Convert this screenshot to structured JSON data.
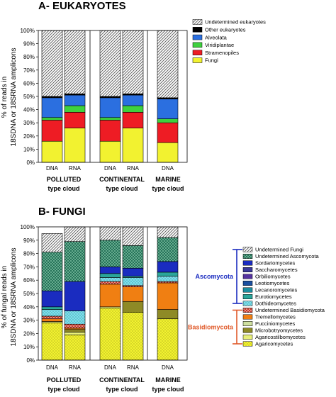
{
  "chart_data": [
    {
      "type": "bar",
      "stacked": true,
      "title": "A- EUKARYOTES",
      "ylabel_lines": [
        "% of reads in",
        "18SDNA or 18SRNA amplicons"
      ],
      "ylim": [
        0,
        100
      ],
      "yticks": [
        "0%",
        "10%",
        "20%",
        "30%",
        "40%",
        "50%",
        "60%",
        "70%",
        "80%",
        "90%",
        "100%"
      ],
      "categories": [
        "DNA",
        "RNA",
        "DNA",
        "RNA",
        "DNA"
      ],
      "groups": [
        {
          "line1": "POLLUTED",
          "line2": "type cloud"
        },
        {
          "line1": "CONTINENTAL",
          "line2": "type cloud"
        },
        {
          "line1": "MARINE",
          "line2": "type cloud"
        }
      ],
      "series": [
        {
          "name": "Fungi",
          "color": "#f2f230",
          "values": [
            16,
            26,
            16,
            26,
            15
          ]
        },
        {
          "name": "Stramenopiles",
          "color": "#ee1c24",
          "values": [
            16,
            12,
            16,
            12,
            15
          ]
        },
        {
          "name": "Viridiplantae",
          "color": "#3ed13e",
          "values": [
            2,
            5,
            2,
            5,
            3
          ]
        },
        {
          "name": "Alveolata",
          "color": "#2b6fe0",
          "values": [
            15,
            8,
            15,
            8,
            15
          ]
        },
        {
          "name": "Other eukaryotes",
          "color": "#000000",
          "values": [
            1,
            1,
            1,
            1,
            1
          ]
        },
        {
          "name": "Undetermined eukaryotes",
          "color": "hatch-grey",
          "values": [
            50,
            48,
            50,
            48,
            51
          ]
        }
      ],
      "legend_order": [
        "Undetermined eukaryotes",
        "Other eukaryotes",
        "Alveolata",
        "Viridiplantae",
        "Stramenopiles",
        "Fungi"
      ]
    },
    {
      "type": "bar",
      "stacked": true,
      "title": "B- FUNGI",
      "ylabel_lines": [
        "% of fungal reads in",
        "18SDNA or 18SRNA amplicons"
      ],
      "ylim": [
        0,
        100
      ],
      "yticks": [
        "0%",
        "10%",
        "20%",
        "30%",
        "40%",
        "50%",
        "60%",
        "70%",
        "80%",
        "90%",
        "100%"
      ],
      "categories": [
        "DNA",
        "RNA",
        "DNA",
        "RNA",
        "DNA"
      ],
      "groups": [
        {
          "line1": "POLLUTED",
          "line2": "type cloud"
        },
        {
          "line1": "CONTINENTAL",
          "line2": "type cloud"
        },
        {
          "line1": "MARINE",
          "line2": "type cloud"
        }
      ],
      "series": [
        {
          "name": "Agaricomycetes",
          "color": "#f2f230",
          "pattern": "dots",
          "values": [
            28,
            19,
            39,
            36,
            31
          ]
        },
        {
          "name": "Agaricostilbomycetes",
          "color": "#e8f07a",
          "values": [
            1,
            2,
            1,
            0,
            0
          ]
        },
        {
          "name": "Microbotryomycetes",
          "color": "#8e8a26",
          "values": [
            0,
            2,
            0,
            8,
            7
          ]
        },
        {
          "name": "Pucciniomycetes",
          "color": "#cfe0a0",
          "values": [
            0,
            0,
            0,
            0,
            0
          ]
        },
        {
          "name": "Tremellomycetes",
          "color": "#f07f12",
          "values": [
            2,
            1,
            17,
            11,
            20
          ]
        },
        {
          "name": "Undetermined Basidiomycota",
          "color": "#c2281c",
          "pattern": "cross",
          "values": [
            2,
            3,
            2,
            1,
            1
          ]
        },
        {
          "name": "Dothideomycetes",
          "color": "#7de0ec",
          "pattern": "dots",
          "values": [
            5,
            10,
            3,
            6,
            4
          ]
        },
        {
          "name": "Eurotiomycetes",
          "color": "#2aa69a",
          "values": [
            2,
            0,
            3,
            1,
            3
          ]
        },
        {
          "name": "Lecanoromycetes",
          "color": "#1c8ea0",
          "values": [
            0,
            0,
            0,
            0,
            0
          ]
        },
        {
          "name": "Leotiomycetes",
          "color": "#1b4fa0",
          "values": [
            0,
            0,
            0,
            0,
            0
          ]
        },
        {
          "name": "Orbiliomycetes",
          "color": "#5533a0",
          "values": [
            0,
            0,
            0,
            0,
            0
          ]
        },
        {
          "name": "Saccharomycetes",
          "color": "#3a3a9a",
          "values": [
            0,
            0,
            0,
            0,
            0
          ]
        },
        {
          "name": "Sordariomycetes",
          "color": "#1a2cc0",
          "values": [
            12,
            22,
            5,
            6,
            8
          ]
        },
        {
          "name": "Undetermined Ascomycota",
          "color": "#1d6b52",
          "pattern": "cross",
          "values": [
            29,
            30,
            20,
            17,
            18
          ]
        },
        {
          "name": "Undetermined Fungi",
          "color": "hatch-grey",
          "values": [
            14,
            11,
            10,
            14,
            8
          ]
        }
      ],
      "legend_order": [
        "Undetermined Fungi",
        "Undetermined Ascomycota",
        "Sordariomycetes",
        "Saccharomycetes",
        "Orbiliomycetes",
        "Leotiomycetes",
        "Lecanoromycetes",
        "Eurotiomycetes",
        "Dothideomycetes",
        "Undetermined Basidiomycota",
        "Tremellomycetes",
        "Pucciniomycetes",
        "Microbotryomycetes",
        "Agaricostilbomycetes",
        "Agaricomycetes"
      ],
      "brackets": [
        {
          "label": "Ascomycota",
          "color": "#1a2cc0",
          "from": "Undetermined Fungi",
          "to": "Dothideomycetes"
        },
        {
          "label": "Basidiomycota",
          "color": "#e05a2a",
          "from": "Undetermined Basidiomycota",
          "to": "Agaricomycetes"
        }
      ]
    }
  ]
}
